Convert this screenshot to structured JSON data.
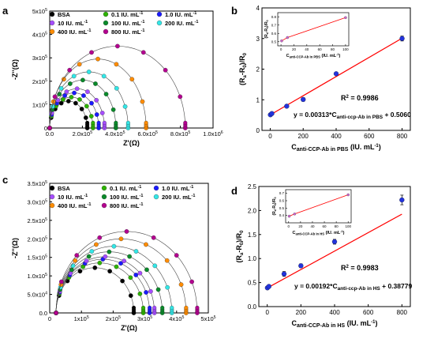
{
  "panels": [
    {
      "id": "a",
      "letter": "a"
    },
    {
      "id": "b",
      "letter": "b"
    },
    {
      "id": "c",
      "letter": "c"
    },
    {
      "id": "d",
      "letter": "d"
    }
  ],
  "colors": {
    "BSA": "#000000",
    "0.1": "#2db300",
    "1.0": "#1a1aff",
    "10": "#a64dff",
    "100": "#0a8a2a",
    "200": "#33e6e6",
    "400": "#ff8c00",
    "800": "#b3008f",
    "fit_line": "#ff0000",
    "cal_point": "#2233dd",
    "inset_line": "#cc66cc"
  },
  "chart_data": [
    {
      "panel": "a",
      "type": "scatter",
      "xlabel_main": "Z'",
      "xlabel_unit": "(Ω)",
      "ylabel_main": "-Z''",
      "ylabel_unit": "(Ω)",
      "xlim": [
        0,
        1000000
      ],
      "ylim": [
        0,
        500000
      ],
      "xticks": [
        {
          "v": 0,
          "m": "0.0",
          "e": ""
        },
        {
          "v": 200000,
          "m": "2.0x10",
          "e": "5"
        },
        {
          "v": 400000,
          "m": "4.0x10",
          "e": "5"
        },
        {
          "v": 600000,
          "m": "6.0x10",
          "e": "5"
        },
        {
          "v": 800000,
          "m": "8.0x10",
          "e": "5"
        },
        {
          "v": 1000000,
          "m": "1.0x10",
          "e": "6"
        }
      ],
      "yticks": [
        {
          "v": 0,
          "m": "0",
          "e": ""
        },
        {
          "v": 100000,
          "m": "1x10",
          "e": "5"
        },
        {
          "v": 200000,
          "m": "2x10",
          "e": "5"
        },
        {
          "v": 300000,
          "m": "3x10",
          "e": "5"
        },
        {
          "v": 400000,
          "m": "4x10",
          "e": "5"
        },
        {
          "v": 500000,
          "m": "5x10",
          "e": "5"
        }
      ],
      "legend": [
        {
          "key": "BSA",
          "text": "BSA"
        },
        {
          "key": "0.1",
          "text": "0.1 IU. mL",
          "sup": "-1"
        },
        {
          "key": "1.0",
          "text": "1.0 IU. mL",
          "sup": "-1"
        },
        {
          "key": "10",
          "text": "10 IU. mL",
          "sup": "-1"
        },
        {
          "key": "100",
          "text": "100 IU. mL",
          "sup": "-1"
        },
        {
          "key": "200",
          "text": "200 IU. mL",
          "sup": "-1"
        },
        {
          "key": "400",
          "text": "400 IU. mL",
          "sup": "-1"
        },
        {
          "key": "800",
          "text": "800 IU. mL",
          "sup": "-1"
        }
      ],
      "series": [
        {
          "key": "BSA",
          "start": 0,
          "end": 230000,
          "peak": 115000
        },
        {
          "key": "0.1",
          "start": 0,
          "end": 265000,
          "peak": 132000
        },
        {
          "key": "1.0",
          "start": 0,
          "end": 300000,
          "peak": 150000
        },
        {
          "key": "10",
          "start": 0,
          "end": 335000,
          "peak": 168000
        },
        {
          "key": "100",
          "start": 0,
          "end": 405000,
          "peak": 205000
        },
        {
          "key": "200",
          "start": 0,
          "end": 480000,
          "peak": 240000
        },
        {
          "key": "400",
          "start": 0,
          "end": 590000,
          "peak": 295000
        },
        {
          "key": "800",
          "start": 0,
          "end": 830000,
          "peak": 350000
        }
      ]
    },
    {
      "panel": "b",
      "type": "scatter",
      "ylabel": "(Ra-R0)/R0",
      "xlabel": "C anti-CCP-Ab in PBS (IU. mL-1)",
      "xlim": [
        -50,
        850
      ],
      "ylim": [
        0,
        4
      ],
      "xticks": [
        0,
        200,
        400,
        600,
        800
      ],
      "yticks": [
        0,
        1,
        2,
        3,
        4
      ],
      "points": [
        {
          "x": 1,
          "y": 0.51,
          "err": 0.03
        },
        {
          "x": 10,
          "y": 0.55,
          "err": 0.03
        },
        {
          "x": 100,
          "y": 0.79,
          "err": 0.04
        },
        {
          "x": 200,
          "y": 1.01,
          "err": 0.06
        },
        {
          "x": 400,
          "y": 1.85,
          "err": 0.03
        },
        {
          "x": 800,
          "y": 3.0,
          "err": 0.08
        }
      ],
      "fit": {
        "slope": 0.00313,
        "intercept": 0.506
      },
      "r2_text": "R",
      "r2_val": "= 0.9986",
      "eq_text": "y = 0.00313*C",
      "eq_sub": "anti-ccp-Ab in PBS",
      "eq_tail": "+ 0.5060",
      "inset": {
        "xlim": [
          -5,
          105
        ],
        "ylim": [
          0.45,
          0.85
        ],
        "xticks": [
          0,
          20,
          40,
          60,
          80,
          100
        ],
        "yticks": [
          0.5,
          0.6,
          0.7,
          0.8
        ],
        "points": [
          {
            "x": 1,
            "y": 0.51
          },
          {
            "x": 10,
            "y": 0.55
          },
          {
            "x": 100,
            "y": 0.79
          }
        ],
        "ylabel": "(Ra-R0)/R0",
        "xlabel_main": "C",
        "xlabel_sub": "anti-CCP-Ab in PBS",
        "xlabel_unit": "(IU. mL",
        "xlabel_sup": "-1",
        "xlabel_close": ")"
      }
    },
    {
      "panel": "c",
      "type": "scatter",
      "xlabel_main": "Z'",
      "xlabel_unit": "(Ω)",
      "ylabel_main": "-Z''",
      "ylabel_unit": "(Ω)",
      "xlim": [
        0,
        500000
      ],
      "ylim": [
        0,
        350000
      ],
      "xticks": [
        {
          "v": 0,
          "m": "0",
          "e": ""
        },
        {
          "v": 100000,
          "m": "1x10",
          "e": "5"
        },
        {
          "v": 200000,
          "m": "2x10",
          "e": "5"
        },
        {
          "v": 300000,
          "m": "3x10",
          "e": "5"
        },
        {
          "v": 400000,
          "m": "4x10",
          "e": "5"
        },
        {
          "v": 500000,
          "m": "5x10",
          "e": "5"
        }
      ],
      "yticks": [
        {
          "v": 0,
          "m": "0.0",
          "e": ""
        },
        {
          "v": 50000,
          "m": "5.0x10",
          "e": "4"
        },
        {
          "v": 100000,
          "m": "1.0x10",
          "e": "5"
        },
        {
          "v": 150000,
          "m": "1.5x10",
          "e": "5"
        },
        {
          "v": 200000,
          "m": "2.0x10",
          "e": "5"
        },
        {
          "v": 250000,
          "m": "2.5x10",
          "e": "5"
        },
        {
          "v": 300000,
          "m": "3.0x10",
          "e": "5"
        },
        {
          "v": 350000,
          "m": "3.5x10",
          "e": "5"
        }
      ],
      "legend": [
        {
          "key": "BSA",
          "text": "BSA"
        },
        {
          "key": "0.1",
          "text": "0.1 IU. mL",
          "sup": "-1"
        },
        {
          "key": "1.0",
          "text": "1.0 IU. mL",
          "sup": "-1"
        },
        {
          "key": "10",
          "text": "10 IU. mL",
          "sup": "-1"
        },
        {
          "key": "100",
          "text": "100 IU. mL",
          "sup": "-1"
        },
        {
          "key": "200",
          "text": "200 IU. mL",
          "sup": "-1"
        },
        {
          "key": "400",
          "text": "400 IU. mL",
          "sup": "-1"
        },
        {
          "key": "800",
          "text": "800 IU. mL",
          "sup": "-1"
        }
      ],
      "series": [
        {
          "key": "BSA",
          "start": 20000,
          "end": 265000,
          "peak": 122000
        },
        {
          "key": "0.1",
          "start": 20000,
          "end": 295000,
          "peak": 135000
        },
        {
          "key": "1.0",
          "start": 20000,
          "end": 315000,
          "peak": 145000
        },
        {
          "key": "10",
          "start": 20000,
          "end": 330000,
          "peak": 152000
        },
        {
          "key": "100",
          "start": 20000,
          "end": 355000,
          "peak": 165000
        },
        {
          "key": "200",
          "start": 20000,
          "end": 385000,
          "peak": 180000
        },
        {
          "key": "400",
          "start": 20000,
          "end": 430000,
          "peak": 200000
        },
        {
          "key": "800",
          "start": 20000,
          "end": 465000,
          "peak": 220000
        }
      ]
    },
    {
      "panel": "d",
      "type": "scatter",
      "ylabel": "(Ra-R0)/R0",
      "xlabel": "C anti-CCP-Ab in HS (IU. mL-1)",
      "xlim": [
        -50,
        850
      ],
      "ylim": [
        0,
        2.5
      ],
      "xticks": [
        0,
        200,
        400,
        600,
        800
      ],
      "yticks": [
        0.0,
        0.5,
        1.0,
        1.5,
        2.0,
        2.5
      ],
      "ytick_labels": [
        "0.0",
        "0.5",
        "1.0",
        "1.5",
        "2.0",
        "2.5"
      ],
      "points": [
        {
          "x": 1,
          "y": 0.39,
          "err": 0.03
        },
        {
          "x": 10,
          "y": 0.42,
          "err": 0.03
        },
        {
          "x": 100,
          "y": 0.68,
          "err": 0.05
        },
        {
          "x": 200,
          "y": 0.85,
          "err": 0.04
        },
        {
          "x": 400,
          "y": 1.35,
          "err": 0.05
        },
        {
          "x": 800,
          "y": 2.22,
          "err": 0.1
        }
      ],
      "fit": {
        "slope": 0.00192,
        "intercept": 0.38779
      },
      "r2_text": "R",
      "r2_val": "= 0.9983",
      "eq_text": "y = 0.00192*C",
      "eq_sub": "anti-ccp-Ab in HS",
      "eq_tail": "+ 0.38779",
      "inset": {
        "xlim": [
          -5,
          105
        ],
        "ylim": [
          0.3,
          0.75
        ],
        "xticks": [
          0,
          20,
          40,
          60,
          80,
          100
        ],
        "yticks": [
          0.4,
          0.5,
          0.6,
          0.7
        ],
        "points": [
          {
            "x": 1,
            "y": 0.39
          },
          {
            "x": 10,
            "y": 0.42
          },
          {
            "x": 100,
            "y": 0.68
          }
        ],
        "ylabel": "(Ra-R0)/R0",
        "xlabel_main": "C",
        "xlabel_sub": "anti-CCP-Ab in HS",
        "xlabel_unit": "(IU. mL",
        "xlabel_sup": "-1",
        "xlabel_close": ")"
      }
    }
  ]
}
